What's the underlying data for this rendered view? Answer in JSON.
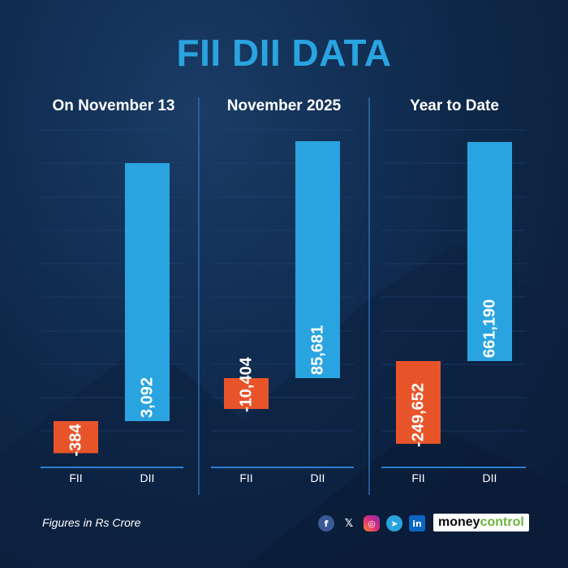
{
  "title": "FII DII DATA",
  "footer_note": "Figures in Rs Crore",
  "brand": {
    "part1": "money",
    "part2": "control"
  },
  "socials": [
    {
      "icon": "facebook-icon",
      "glyph": "f"
    },
    {
      "icon": "x-icon",
      "glyph": "𝕏"
    },
    {
      "icon": "instagram-icon",
      "glyph": "◎"
    },
    {
      "icon": "telegram-icon",
      "glyph": "➤"
    },
    {
      "icon": "linkedin-icon",
      "glyph": "in"
    }
  ],
  "colors": {
    "negative": "#e8542a",
    "positive": "#2aa4e0",
    "title": "#2aa4e0"
  },
  "chart_data": [
    {
      "type": "bar",
      "title": "On November 13",
      "categories": [
        "FII",
        "DII"
      ],
      "values": [
        -384,
        3092
      ],
      "value_labels": [
        "-384",
        "3,092"
      ]
    },
    {
      "type": "bar",
      "title": "November 2025",
      "categories": [
        "FII",
        "DII"
      ],
      "values": [
        -10404,
        85681
      ],
      "value_labels": [
        "-10,404",
        "85,681"
      ]
    },
    {
      "type": "bar",
      "title": "Year to Date",
      "categories": [
        "FII",
        "DII"
      ],
      "values": [
        -249652,
        661190
      ],
      "value_labels": [
        "-249,652",
        "661,190"
      ]
    }
  ]
}
